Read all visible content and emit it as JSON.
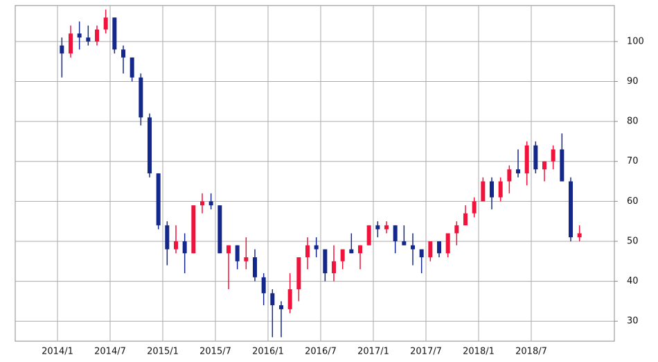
{
  "chart_data": {
    "type": "candlestick",
    "categories": [
      "2014/1",
      null,
      null,
      null,
      null,
      null,
      "2014/7",
      null,
      null,
      null,
      null,
      null,
      "2015/1",
      null,
      null,
      null,
      null,
      null,
      "2015/7",
      null,
      null,
      null,
      null,
      null,
      "2016/1",
      null,
      null,
      null,
      null,
      null,
      "2016/7",
      null,
      null,
      null,
      null,
      null,
      "2017/1",
      null,
      null,
      null,
      null,
      null,
      "2017/7",
      null,
      null,
      null,
      null,
      null,
      "2018/1",
      null,
      null,
      null,
      null,
      null,
      "2018/7",
      null,
      null,
      null,
      null,
      null
    ],
    "open": [
      99,
      97,
      102,
      101,
      100,
      103,
      106,
      98,
      96,
      91,
      81,
      67,
      54,
      48,
      50,
      47,
      59,
      60,
      59,
      47,
      49,
      45,
      46,
      41,
      37,
      34,
      33,
      38,
      46,
      49,
      48,
      42,
      45,
      48,
      47,
      49,
      54,
      53,
      54,
      50,
      49,
      48,
      46,
      50,
      47,
      52,
      54,
      57,
      60,
      65,
      61,
      65,
      68,
      67,
      74,
      68,
      70,
      73,
      65,
      51
    ],
    "high": [
      101,
      104,
      105,
      104,
      104,
      108,
      106,
      99,
      96,
      92,
      82,
      67,
      55,
      54,
      52,
      59,
      62,
      62,
      59,
      49,
      49,
      51,
      48,
      42,
      38,
      35,
      42,
      46,
      51,
      51,
      48,
      49,
      48,
      52,
      49,
      54,
      55,
      55,
      54,
      54,
      52,
      48,
      50,
      50,
      52,
      55,
      59,
      61,
      66,
      66,
      66,
      69,
      73,
      75,
      75,
      70,
      74,
      77,
      66,
      54
    ],
    "low": [
      91,
      96,
      98,
      99,
      99,
      102,
      97,
      92,
      90,
      79,
      66,
      53,
      44,
      47,
      42,
      47,
      57,
      58,
      47,
      38,
      43,
      43,
      40,
      34,
      26,
      26,
      32,
      35,
      43,
      46,
      40,
      40,
      43,
      47,
      43,
      49,
      51,
      52,
      47,
      49,
      44,
      42,
      45,
      46,
      46,
      49,
      54,
      56,
      60,
      58,
      60,
      62,
      66,
      64,
      67,
      65,
      68,
      65,
      50,
      50
    ],
    "close": [
      97,
      102,
      101,
      100,
      103,
      106,
      98,
      96,
      91,
      81,
      67,
      54,
      48,
      50,
      47,
      59,
      60,
      59,
      47,
      49,
      45,
      46,
      41,
      37,
      34,
      33,
      38,
      46,
      49,
      48,
      42,
      45,
      48,
      47,
      49,
      54,
      53,
      54,
      50,
      49,
      48,
      46,
      50,
      47,
      52,
      54,
      57,
      60,
      65,
      61,
      65,
      68,
      67,
      74,
      68,
      70,
      73,
      65,
      51,
      52
    ],
    "up_color": "#f0143c",
    "down_color": "#14288c",
    "ylim": [
      25,
      109
    ],
    "yticks": [
      30,
      40,
      50,
      60,
      70,
      80,
      90,
      100
    ],
    "grid": true,
    "y_axis_side": "right"
  }
}
